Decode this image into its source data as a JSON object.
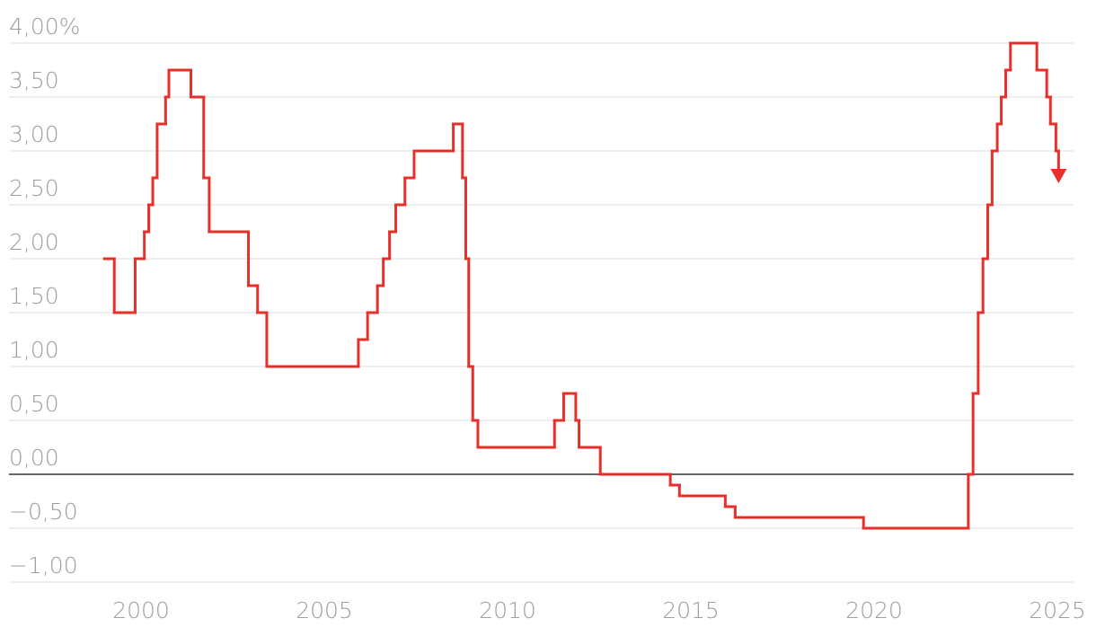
{
  "chart_data": {
    "type": "step",
    "x": [
      1999.0,
      1999.27,
      1999.84,
      2000.09,
      2000.21,
      2000.32,
      2000.44,
      2000.67,
      2000.76,
      2001.36,
      2001.71,
      2001.86,
      2002.93,
      2003.18,
      2003.43,
      2005.93,
      2006.18,
      2006.45,
      2006.61,
      2006.78,
      2006.95,
      2007.2,
      2007.45,
      2008.52,
      2008.77,
      2008.86,
      2008.94,
      2009.05,
      2009.19,
      2011.28,
      2011.53,
      2011.86,
      2011.95,
      2012.53,
      2014.44,
      2014.69,
      2015.94,
      2016.21,
      2019.71,
      2022.57,
      2022.7,
      2022.84,
      2022.97,
      2023.1,
      2023.22,
      2023.36,
      2023.47,
      2023.59,
      2023.72,
      2024.44,
      2024.71,
      2024.81,
      2024.96
    ],
    "values": [
      2.0,
      1.5,
      2.0,
      2.25,
      2.5,
      2.75,
      3.25,
      3.5,
      3.75,
      3.5,
      2.75,
      2.25,
      1.75,
      1.5,
      1.0,
      1.25,
      1.5,
      1.75,
      2.0,
      2.25,
      2.5,
      2.75,
      3.0,
      3.25,
      2.75,
      2.0,
      1.0,
      0.5,
      0.25,
      0.5,
      0.75,
      0.5,
      0.25,
      0.0,
      -0.1,
      -0.2,
      -0.3,
      -0.4,
      -0.5,
      0.0,
      0.75,
      1.5,
      2.0,
      2.5,
      3.0,
      3.25,
      3.5,
      3.75,
      4.0,
      3.75,
      3.5,
      3.25,
      3.0
    ],
    "color": "#e8302a",
    "xlim": [
      1998.65,
      2026.0
    ],
    "xticks": [
      2000,
      2005,
      2010,
      2015,
      2020,
      2025
    ],
    "ylim": [
      -1.0,
      4.0
    ],
    "yticks": [
      {
        "value": 4.0,
        "label": "4,00%"
      },
      {
        "value": 3.5,
        "label": "3,50"
      },
      {
        "value": 3.0,
        "label": "3,00"
      },
      {
        "value": 2.5,
        "label": "2,50"
      },
      {
        "value": 2.0,
        "label": "2,00"
      },
      {
        "value": 1.5,
        "label": "1,50"
      },
      {
        "value": 1.0,
        "label": "1,00"
      },
      {
        "value": 0.5,
        "label": "0,50"
      },
      {
        "value": 0.0,
        "label": "0,00"
      },
      {
        "value": -0.5,
        "label": "−0,50"
      },
      {
        "value": -1.0,
        "label": "−1,00"
      }
    ],
    "grid": true
  }
}
